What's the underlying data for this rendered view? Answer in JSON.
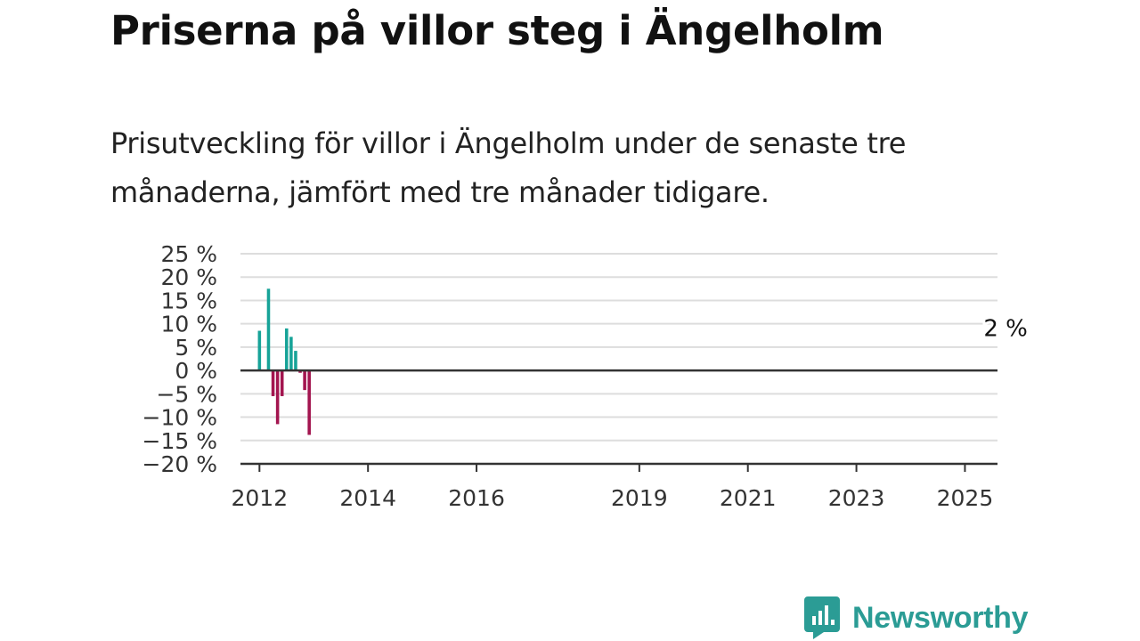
{
  "header": {
    "title": "Priserna på villor steg i Ängelholm",
    "subtitle": "Prisutveckling för villor i Ängelholm under de senaste tre månaderna, jämfört med tre månader tidigare."
  },
  "brand": {
    "name": "Newsworthy",
    "color": "#2b9c95"
  },
  "colors": {
    "positive": "#17a398",
    "negative": "#a3154f",
    "grid": "#dddddd",
    "zero": "#333333"
  },
  "chart_data": {
    "type": "bar",
    "title": "Priserna på villor steg i Ängelholm",
    "ylim": [
      -20,
      25
    ],
    "yticks": [
      {
        "v": 25,
        "label": "25 %"
      },
      {
        "v": 20,
        "label": "20 %"
      },
      {
        "v": 15,
        "label": "15 %"
      },
      {
        "v": 10,
        "label": "10 %"
      },
      {
        "v": 5,
        "label": "5 %"
      },
      {
        "v": 0,
        "label": "0 %"
      },
      {
        "v": -5,
        "label": "−5 %"
      },
      {
        "v": -10,
        "label": "−10 %"
      },
      {
        "v": -15,
        "label": "−15 %"
      },
      {
        "v": -20,
        "label": "−20 %"
      }
    ],
    "xticks": [
      {
        "year": 2012,
        "label": "2012"
      },
      {
        "year": 2014,
        "label": "2014"
      },
      {
        "year": 2016,
        "label": "2016"
      },
      {
        "year": 2019,
        "label": "2019"
      },
      {
        "year": 2021,
        "label": "2021"
      },
      {
        "year": 2023,
        "label": "2023"
      },
      {
        "year": 2025,
        "label": "2025"
      }
    ],
    "grid": true,
    "start": "2012-01",
    "values": [
      8.5,
      0,
      17.5,
      -5.5,
      -11.5,
      -5.5,
      9,
      7.2,
      4.2,
      -0.5,
      -4.2,
      -13.8,
      0,
      0,
      0,
      0,
      0,
      0,
      0,
      0,
      0,
      0,
      0,
      0,
      0,
      0,
      0,
      0,
      0,
      0,
      0,
      0,
      0,
      0,
      0,
      0,
      0,
      0,
      0,
      0,
      0,
      0,
      0,
      0,
      0,
      0,
      0,
      0,
      0,
      0,
      0,
      0,
      0,
      0,
      0,
      0,
      0,
      0,
      0,
      0,
      0,
      0,
      0,
      0,
      0,
      0,
      0,
      0,
      0,
      0,
      0,
      0,
      0,
      0,
      0,
      0,
      0,
      0,
      0,
      0,
      0,
      0,
      0,
      0,
      0,
      0,
      0,
      0,
      0,
      0,
      0,
      0,
      0,
      0,
      0,
      0,
      0,
      0,
      0,
      0,
      0,
      0,
      0,
      0,
      0,
      0,
      0,
      0,
      0,
      0,
      0,
      0,
      0,
      0,
      0,
      0,
      0,
      0,
      0,
      0,
      0,
      0,
      0,
      0,
      0,
      0,
      0,
      0,
      0,
      0,
      0,
      0,
      0,
      0,
      0,
      0,
      0,
      0,
      0,
      0,
      0,
      0,
      0,
      0,
      0,
      0,
      0,
      0,
      0,
      0,
      0,
      0,
      0,
      0,
      0,
      0,
      0,
      0,
      0,
      0,
      0,
      0,
      0,
      0,
      0,
      0
    ],
    "annotation": {
      "text": "2 %",
      "value": 2
    }
  }
}
